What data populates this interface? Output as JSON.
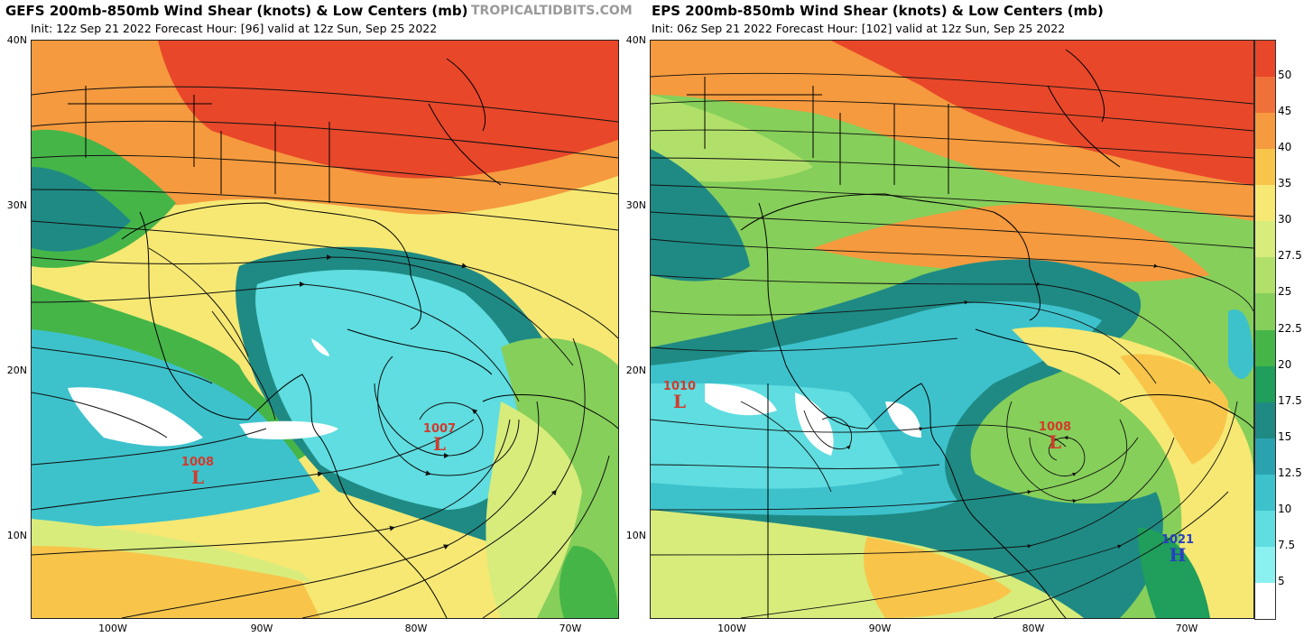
{
  "watermark": "TROPICALTIDBITS.COM",
  "left": {
    "title": "GEFS 200mb-850mb Wind Shear (knots) & Low Centers (mb)",
    "subtitle": "Init: 12z Sep 21 2022   Forecast Hour: [96]   valid at 12z Sun, Sep 25 2022",
    "centers": [
      {
        "type": "L",
        "pressure": "1008"
      },
      {
        "type": "L",
        "pressure": "1007"
      }
    ]
  },
  "right": {
    "title": "EPS 200mb-850mb Wind Shear (knots) & Low Centers (mb)",
    "subtitle": "Init: 06z Sep 21 2022   Forecast Hour: [102]   valid at 12z Sun, Sep 25 2022",
    "centers": [
      {
        "type": "L",
        "pressure": "1010"
      },
      {
        "type": "L",
        "pressure": "1008"
      },
      {
        "type": "H",
        "pressure": "1021"
      }
    ]
  },
  "lat_labels": [
    "40N",
    "30N",
    "20N",
    "10N"
  ],
  "lon_labels": [
    "100W",
    "90W",
    "80W",
    "70W"
  ],
  "colorbar": {
    "labels": [
      "50",
      "45",
      "40",
      "35",
      "30",
      "27.5",
      "25",
      "22.5",
      "20",
      "17.5",
      "15",
      "12.5",
      "10",
      "7.5",
      "5"
    ],
    "colors": [
      "#e8472a",
      "#f0703a",
      "#f59a3e",
      "#f8c54a",
      "#f6e873",
      "#d8ec7c",
      "#b1e06a",
      "#86cf5a",
      "#45b548",
      "#1f9e5c",
      "#1f8a84",
      "#2aa2b0",
      "#3dc2cc",
      "#5fdde0",
      "#8af0f0",
      "#ffffff"
    ]
  }
}
